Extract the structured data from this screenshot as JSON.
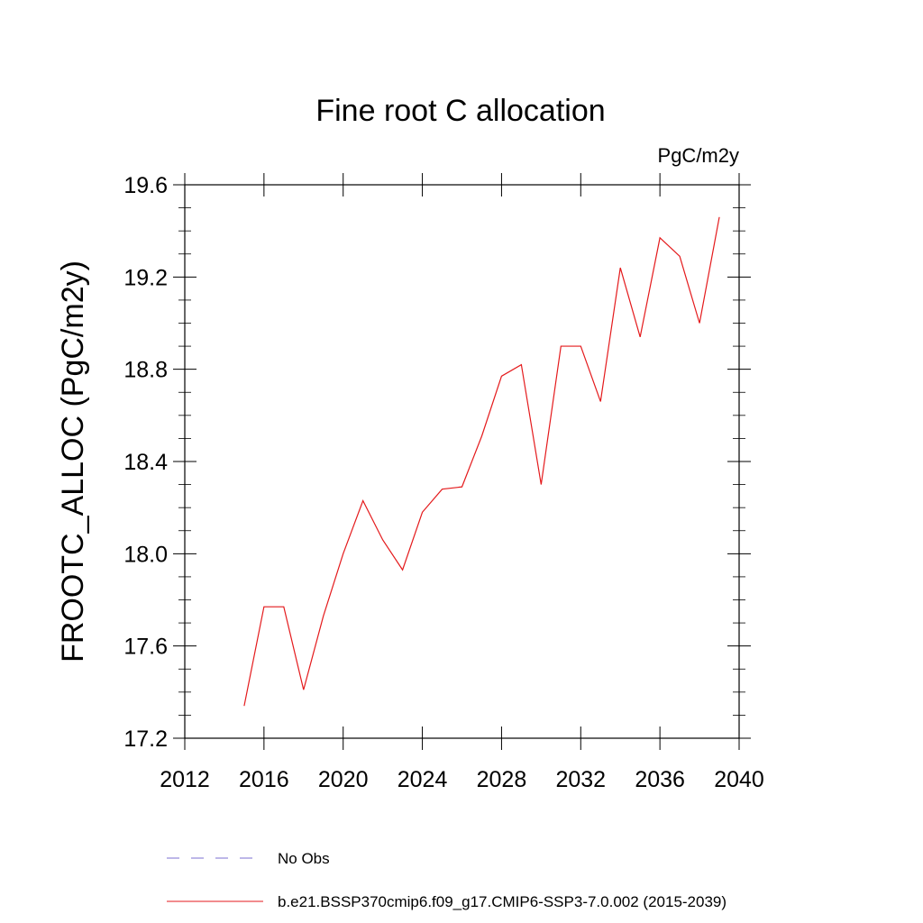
{
  "chart_data": {
    "type": "line",
    "title": "Fine root C allocation",
    "units_label": "PgC/m2y",
    "ylabel": "FROOTC_ALLOC  (PgC/m2y)",
    "xlabel": "",
    "xlim": [
      2012,
      2040
    ],
    "ylim": [
      17.2,
      19.6
    ],
    "x_ticks": [
      2012,
      2016,
      2020,
      2024,
      2028,
      2032,
      2036,
      2040
    ],
    "x_tick_labels": [
      "2012",
      "2016",
      "2020",
      "2024",
      "2028",
      "2032",
      "2036",
      "2040"
    ],
    "y_ticks": [
      17.2,
      17.6,
      18.0,
      18.4,
      18.8,
      19.2,
      19.6
    ],
    "y_tick_labels": [
      "17.2",
      "17.6",
      "18.0",
      "18.4",
      "18.8",
      "19.2",
      "19.6"
    ],
    "grid": false,
    "legend_placement": "bottom",
    "series": [
      {
        "name": "b.e21.BSSP370cmip6.f09_g17.CMIP6-SSP3-7.0.002 (2015-2039)",
        "color": "#e41a1c",
        "style": "solid",
        "x": [
          2015,
          2016,
          2017,
          2018,
          2019,
          2020,
          2021,
          2022,
          2023,
          2024,
          2025,
          2026,
          2027,
          2028,
          2029,
          2030,
          2031,
          2032,
          2033,
          2034,
          2035,
          2036,
          2037,
          2038,
          2039
        ],
        "y": [
          17.34,
          17.77,
          17.77,
          17.41,
          17.73,
          18.0,
          18.23,
          18.06,
          17.93,
          18.18,
          18.28,
          18.29,
          18.51,
          18.77,
          18.82,
          18.3,
          18.9,
          18.9,
          18.66,
          19.24,
          18.94,
          19.37,
          19.29,
          19.0,
          19.46
        ]
      }
    ],
    "legend": [
      {
        "label": "No Obs",
        "color": "#7b6fd0",
        "style": "dashed"
      },
      {
        "label": "b.e21.BSSP370cmip6.f09_g17.CMIP6-SSP3-7.0.002 (2015-2039)",
        "color": "#e41a1c",
        "style": "solid"
      }
    ]
  }
}
